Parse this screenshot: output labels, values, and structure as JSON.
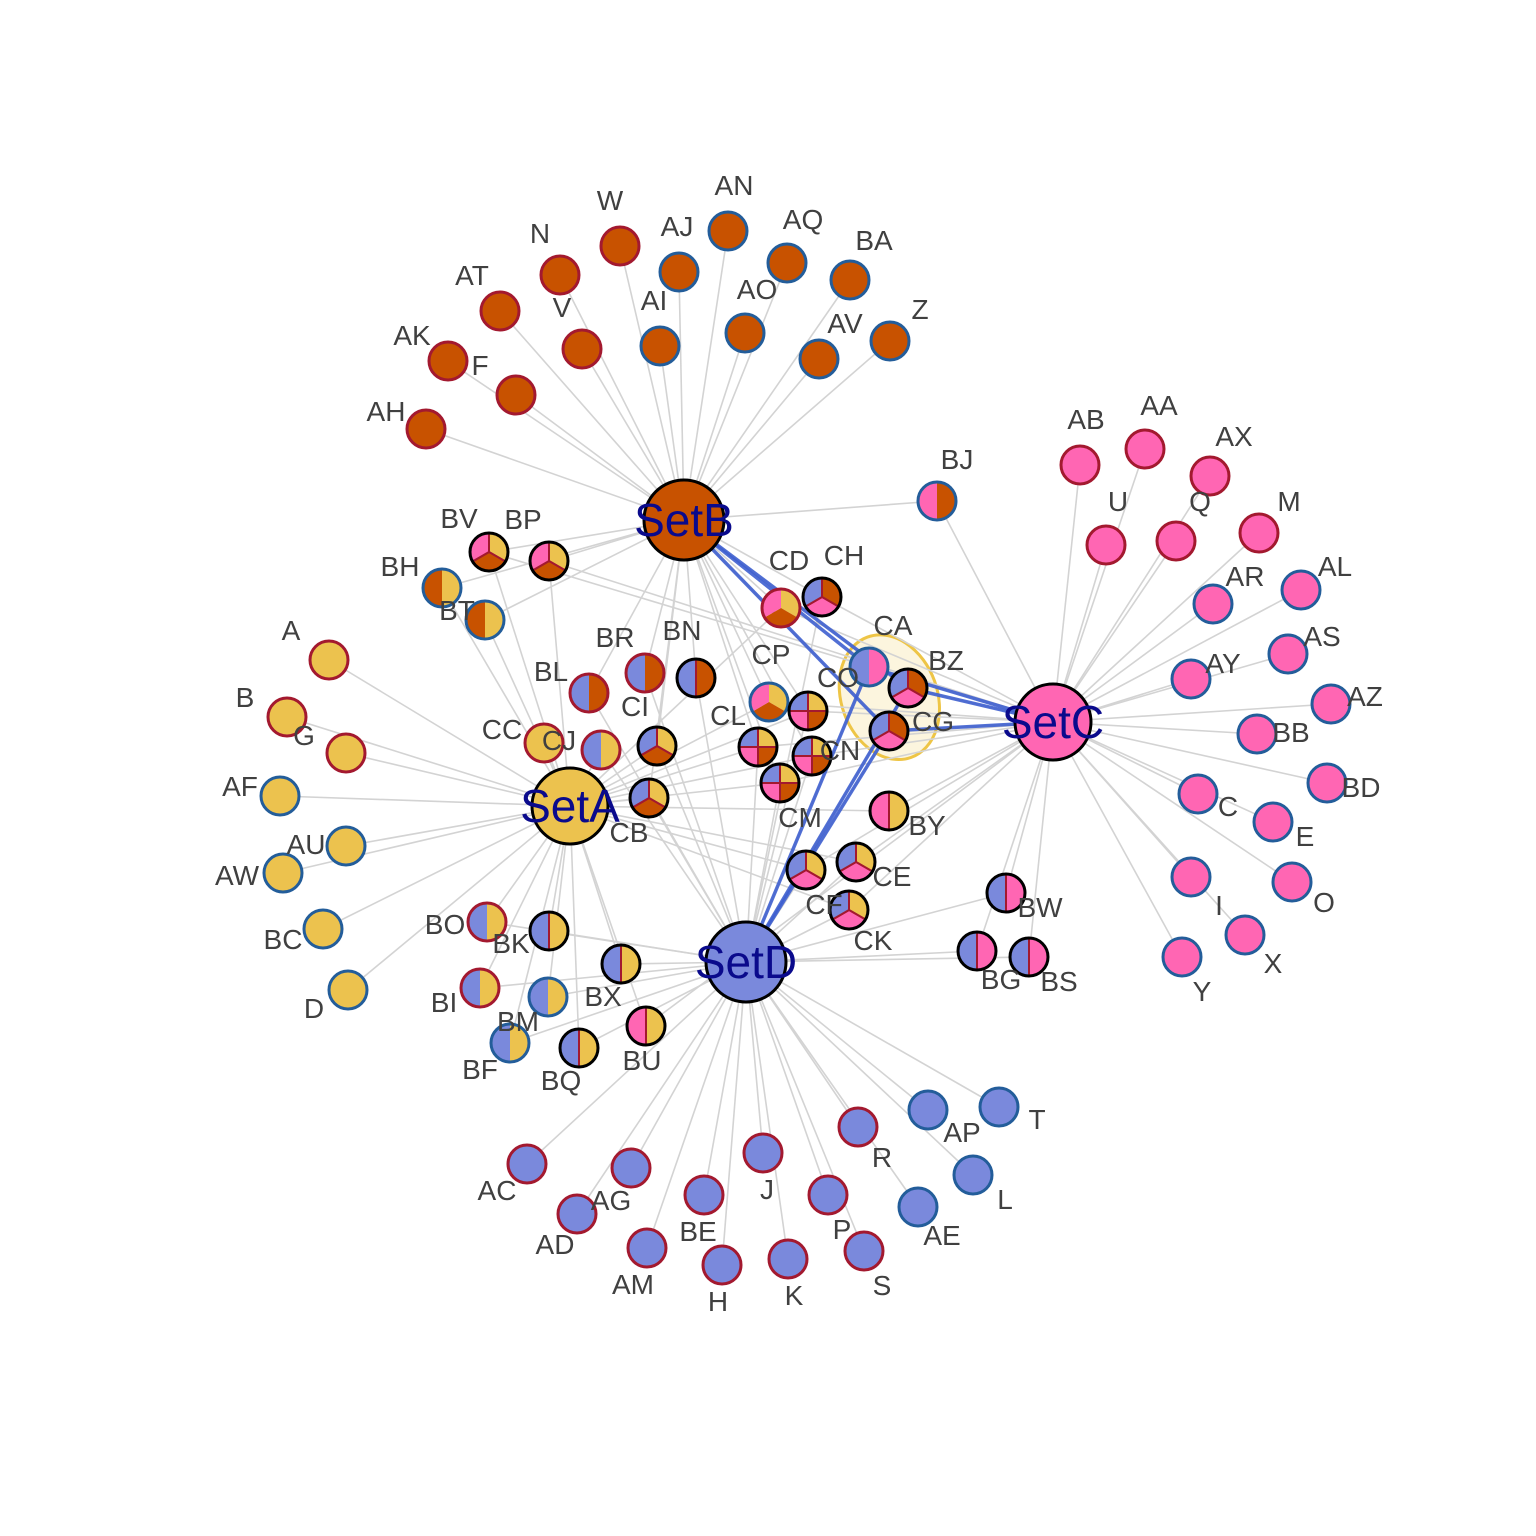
{
  "colors": {
    "SetA": "#ecc24e",
    "SetB": "#c85200",
    "SetC": "#ff66b3",
    "SetD": "#7a89dc",
    "border_red": "#a3192f",
    "border_blue": "#235d9a",
    "border_black": "#000000",
    "edge": "#d3d3d3",
    "highlight_edge": "#3e5fcf",
    "hull": "#eec546",
    "label": "#404040",
    "set_label": "#0a0a8c"
  },
  "sets": [
    "SetA",
    "SetB",
    "SetC",
    "SetD"
  ],
  "set_labels": {
    "SetA": "SetA",
    "SetB": "SetB",
    "SetC": "SetC",
    "SetD": "SetD"
  },
  "nodes": [
    {
      "id": "A",
      "sets": [
        "SetA"
      ],
      "border": "red"
    },
    {
      "id": "B",
      "sets": [
        "SetA"
      ],
      "border": "red"
    },
    {
      "id": "G",
      "sets": [
        "SetA"
      ],
      "border": "red"
    },
    {
      "id": "AF",
      "sets": [
        "SetA"
      ],
      "border": "blue"
    },
    {
      "id": "AU",
      "sets": [
        "SetA"
      ],
      "border": "blue"
    },
    {
      "id": "AW",
      "sets": [
        "SetA"
      ],
      "border": "blue"
    },
    {
      "id": "BC",
      "sets": [
        "SetA"
      ],
      "border": "blue"
    },
    {
      "id": "D",
      "sets": [
        "SetA"
      ],
      "border": "blue"
    },
    {
      "id": "CC",
      "sets": [
        "SetA"
      ],
      "border": "red"
    },
    {
      "id": "W",
      "sets": [
        "SetB"
      ],
      "border": "red"
    },
    {
      "id": "N",
      "sets": [
        "SetB"
      ],
      "border": "red"
    },
    {
      "id": "AT",
      "sets": [
        "SetB"
      ],
      "border": "red"
    },
    {
      "id": "V",
      "sets": [
        "SetB"
      ],
      "border": "red"
    },
    {
      "id": "AK",
      "sets": [
        "SetB"
      ],
      "border": "red"
    },
    {
      "id": "F",
      "sets": [
        "SetB"
      ],
      "border": "red"
    },
    {
      "id": "AH",
      "sets": [
        "SetB"
      ],
      "border": "red"
    },
    {
      "id": "AN",
      "sets": [
        "SetB"
      ],
      "border": "blue"
    },
    {
      "id": "AJ",
      "sets": [
        "SetB"
      ],
      "border": "blue"
    },
    {
      "id": "AQ",
      "sets": [
        "SetB"
      ],
      "border": "blue"
    },
    {
      "id": "BA",
      "sets": [
        "SetB"
      ],
      "border": "blue"
    },
    {
      "id": "AI",
      "sets": [
        "SetB"
      ],
      "border": "blue"
    },
    {
      "id": "AO",
      "sets": [
        "SetB"
      ],
      "border": "blue"
    },
    {
      "id": "AV",
      "sets": [
        "SetB"
      ],
      "border": "blue"
    },
    {
      "id": "Z",
      "sets": [
        "SetB"
      ],
      "border": "blue"
    },
    {
      "id": "AB",
      "sets": [
        "SetC"
      ],
      "border": "red"
    },
    {
      "id": "AA",
      "sets": [
        "SetC"
      ],
      "border": "red"
    },
    {
      "id": "AX",
      "sets": [
        "SetC"
      ],
      "border": "red"
    },
    {
      "id": "U",
      "sets": [
        "SetC"
      ],
      "border": "red"
    },
    {
      "id": "Q",
      "sets": [
        "SetC"
      ],
      "border": "red"
    },
    {
      "id": "M",
      "sets": [
        "SetC"
      ],
      "border": "red"
    },
    {
      "id": "AR",
      "sets": [
        "SetC"
      ],
      "border": "blue"
    },
    {
      "id": "AL",
      "sets": [
        "SetC"
      ],
      "border": "blue"
    },
    {
      "id": "AS",
      "sets": [
        "SetC"
      ],
      "border": "blue"
    },
    {
      "id": "AY",
      "sets": [
        "SetC"
      ],
      "border": "blue"
    },
    {
      "id": "AZ",
      "sets": [
        "SetC"
      ],
      "border": "blue"
    },
    {
      "id": "BB",
      "sets": [
        "SetC"
      ],
      "border": "blue"
    },
    {
      "id": "BD",
      "sets": [
        "SetC"
      ],
      "border": "blue"
    },
    {
      "id": "C",
      "sets": [
        "SetC"
      ],
      "border": "blue"
    },
    {
      "id": "E",
      "sets": [
        "SetC"
      ],
      "border": "blue"
    },
    {
      "id": "I",
      "sets": [
        "SetC"
      ],
      "border": "blue"
    },
    {
      "id": "O",
      "sets": [
        "SetC"
      ],
      "border": "blue"
    },
    {
      "id": "X",
      "sets": [
        "SetC"
      ],
      "border": "blue"
    },
    {
      "id": "Y",
      "sets": [
        "SetC"
      ],
      "border": "blue"
    },
    {
      "id": "AC",
      "sets": [
        "SetD"
      ],
      "border": "red"
    },
    {
      "id": "AG",
      "sets": [
        "SetD"
      ],
      "border": "red"
    },
    {
      "id": "AD",
      "sets": [
        "SetD"
      ],
      "border": "red"
    },
    {
      "id": "BE",
      "sets": [
        "SetD"
      ],
      "border": "red"
    },
    {
      "id": "J",
      "sets": [
        "SetD"
      ],
      "border": "red"
    },
    {
      "id": "AM",
      "sets": [
        "SetD"
      ],
      "border": "red"
    },
    {
      "id": "H",
      "sets": [
        "SetD"
      ],
      "border": "red"
    },
    {
      "id": "K",
      "sets": [
        "SetD"
      ],
      "border": "red"
    },
    {
      "id": "P",
      "sets": [
        "SetD"
      ],
      "border": "red"
    },
    {
      "id": "S",
      "sets": [
        "SetD"
      ],
      "border": "red"
    },
    {
      "id": "R",
      "sets": [
        "SetD"
      ],
      "border": "red"
    },
    {
      "id": "AP",
      "sets": [
        "SetD"
      ],
      "border": "blue"
    },
    {
      "id": "T",
      "sets": [
        "SetD"
      ],
      "border": "blue"
    },
    {
      "id": "L",
      "sets": [
        "SetD"
      ],
      "border": "blue"
    },
    {
      "id": "AE",
      "sets": [
        "SetD"
      ],
      "border": "blue"
    },
    {
      "id": "BV",
      "sets": [
        "SetA",
        "SetB",
        "SetC"
      ],
      "border": "black"
    },
    {
      "id": "BP",
      "sets": [
        "SetA",
        "SetB",
        "SetC"
      ],
      "border": "black"
    },
    {
      "id": "BH",
      "sets": [
        "SetA",
        "SetB"
      ],
      "border": "blue"
    },
    {
      "id": "BT",
      "sets": [
        "SetA",
        "SetB"
      ],
      "border": "blue"
    },
    {
      "id": "BJ",
      "sets": [
        "SetB",
        "SetC"
      ],
      "border": "blue"
    },
    {
      "id": "CD",
      "sets": [
        "SetA",
        "SetB",
        "SetC"
      ],
      "border": "red"
    },
    {
      "id": "CH",
      "sets": [
        "SetB",
        "SetC",
        "SetD"
      ],
      "border": "black"
    },
    {
      "id": "CA",
      "sets": [
        "SetC",
        "SetD"
      ],
      "border": "blue"
    },
    {
      "id": "BZ",
      "sets": [
        "SetB",
        "SetC",
        "SetD"
      ],
      "border": "black"
    },
    {
      "id": "CG",
      "sets": [
        "SetB",
        "SetC",
        "SetD"
      ],
      "border": "black"
    },
    {
      "id": "BR",
      "sets": [
        "SetB",
        "SetD"
      ],
      "border": "red"
    },
    {
      "id": "BN",
      "sets": [
        "SetB",
        "SetD"
      ],
      "border": "black"
    },
    {
      "id": "BL",
      "sets": [
        "SetB",
        "SetD"
      ],
      "border": "red"
    },
    {
      "id": "CP",
      "sets": [
        "SetA",
        "SetB",
        "SetC"
      ],
      "border": "blue"
    },
    {
      "id": "CO",
      "sets": [
        "SetA",
        "SetB",
        "SetC",
        "SetD"
      ],
      "border": "black"
    },
    {
      "id": "CI",
      "sets": [
        "SetA",
        "SetB",
        "SetD"
      ],
      "border": "black"
    },
    {
      "id": "CJ",
      "sets": [
        "SetA",
        "SetD"
      ],
      "border": "red"
    },
    {
      "id": "CL",
      "sets": [
        "SetA",
        "SetB",
        "SetC",
        "SetD"
      ],
      "border": "black"
    },
    {
      "id": "CN",
      "sets": [
        "SetA",
        "SetB",
        "SetC",
        "SetD"
      ],
      "border": "black"
    },
    {
      "id": "CM",
      "sets": [
        "SetA",
        "SetB",
        "SetC",
        "SetD"
      ],
      "border": "black"
    },
    {
      "id": "CB",
      "sets": [
        "SetA",
        "SetB",
        "SetD"
      ],
      "border": "black"
    },
    {
      "id": "BY",
      "sets": [
        "SetA",
        "SetC"
      ],
      "border": "black"
    },
    {
      "id": "CE",
      "sets": [
        "SetA",
        "SetC",
        "SetD"
      ],
      "border": "black"
    },
    {
      "id": "CF",
      "sets": [
        "SetA",
        "SetC",
        "SetD"
      ],
      "border": "black"
    },
    {
      "id": "CK",
      "sets": [
        "SetA",
        "SetC",
        "SetD"
      ],
      "border": "black"
    },
    {
      "id": "BW",
      "sets": [
        "SetC",
        "SetD"
      ],
      "border": "black"
    },
    {
      "id": "BG",
      "sets": [
        "SetC",
        "SetD"
      ],
      "border": "black"
    },
    {
      "id": "BS",
      "sets": [
        "SetC",
        "SetD"
      ],
      "border": "black"
    },
    {
      "id": "BO",
      "sets": [
        "SetA",
        "SetD"
      ],
      "border": "red"
    },
    {
      "id": "BK",
      "sets": [
        "SetA",
        "SetD"
      ],
      "border": "black"
    },
    {
      "id": "BI",
      "sets": [
        "SetA",
        "SetD"
      ],
      "border": "red"
    },
    {
      "id": "BM",
      "sets": [
        "SetA",
        "SetD"
      ],
      "border": "blue"
    },
    {
      "id": "BF",
      "sets": [
        "SetA",
        "SetD"
      ],
      "border": "blue"
    },
    {
      "id": "BX",
      "sets": [
        "SetA",
        "SetD"
      ],
      "border": "black"
    },
    {
      "id": "BU",
      "sets": [
        "SetA",
        "SetC"
      ],
      "border": "black"
    },
    {
      "id": "BQ",
      "sets": [
        "SetA",
        "SetD"
      ],
      "border": "black"
    }
  ],
  "highlighted_nodes": [
    "CA",
    "BZ",
    "CG"
  ],
  "highlighted_links_from": [
    "SetB",
    "SetC",
    "SetD"
  ]
}
